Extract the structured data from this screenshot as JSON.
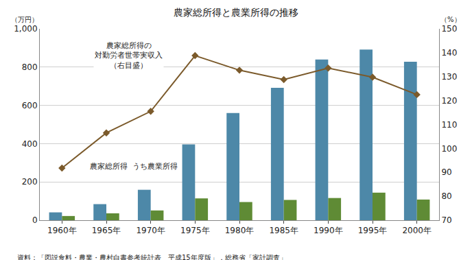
{
  "chart_data": {
    "type": "bar",
    "title": "農家総所得と農業所得の推移",
    "y_label": "（万円）",
    "y2_label": "（%）",
    "source": "資料：「図説食料・農業・農村白書参考統計表　平成15年度版」，総務省「家計調査」",
    "categories": [
      "1960年",
      "1965年",
      "1970年",
      "1975年",
      "1980年",
      "1985年",
      "1990年",
      "1995年",
      "2000年"
    ],
    "series": [
      {
        "name": "農家総所得",
        "type": "bar",
        "color": "#4d88a8",
        "values": [
          41,
          84,
          159,
          396,
          560,
          692,
          840,
          892,
          828
        ]
      },
      {
        "name": "うち農業所得",
        "type": "bar",
        "color": "#5f8b35",
        "values": [
          22,
          36,
          51,
          114,
          95,
          106,
          116,
          144,
          108
        ]
      },
      {
        "name": "農家総所得の\n対勤労者世帯実収入\n（右目盛）",
        "type": "line",
        "axis": "y2",
        "color": "#7b5a2b",
        "marker": "diamond",
        "line_style": "solid",
        "values": [
          91.8,
          106.5,
          115.5,
          138.8,
          132.7,
          128.8,
          133.6,
          129.8,
          122.5
        ]
      }
    ],
    "ylim": [
      0,
      1000
    ],
    "yticks": [
      0,
      200,
      400,
      600,
      800,
      {
        "value": 1000,
        "label": "1,000"
      }
    ],
    "y2lim": [
      70,
      150
    ],
    "y2ticks": [
      70,
      80,
      90,
      100,
      110,
      120,
      130,
      140,
      150
    ],
    "grid": true
  }
}
